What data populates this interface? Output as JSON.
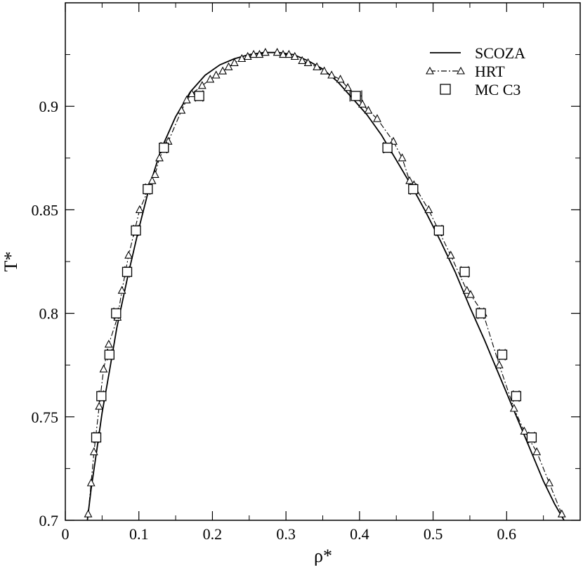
{
  "chart_data": {
    "type": "line",
    "title": "",
    "xlabel": "ρ*",
    "ylabel": "T*",
    "xlim": [
      0,
      0.7
    ],
    "ylim": [
      0.7,
      0.95
    ],
    "xticks": [
      "0",
      "0.1",
      "0.2",
      "0.3",
      "0.4",
      "0.5",
      "0.6"
    ],
    "xtick_values": [
      0,
      0.1,
      0.2,
      0.3,
      0.4,
      0.5,
      0.6
    ],
    "yticks": [
      "0.7",
      "0.75",
      "0.8",
      "0.85",
      "0.9"
    ],
    "ytick_values": [
      0.7,
      0.75,
      0.8,
      0.85,
      0.9
    ],
    "grid": false,
    "legend_position": "top-right",
    "series": [
      {
        "name": "SCOZA",
        "style": "solid",
        "x": [
          0.03,
          0.035,
          0.042,
          0.05,
          0.06,
          0.07,
          0.085,
          0.1,
          0.115,
          0.13,
          0.15,
          0.17,
          0.19,
          0.21,
          0.23,
          0.25,
          0.27,
          0.29,
          0.31,
          0.33,
          0.35,
          0.37,
          0.39,
          0.41,
          0.43,
          0.45,
          0.47,
          0.49,
          0.51,
          0.53,
          0.55,
          0.57,
          0.59,
          0.61,
          0.63,
          0.65,
          0.665,
          0.678
        ],
        "y": [
          0.7,
          0.715,
          0.732,
          0.752,
          0.772,
          0.793,
          0.818,
          0.841,
          0.862,
          0.879,
          0.895,
          0.907,
          0.915,
          0.92,
          0.923,
          0.925,
          0.926,
          0.926,
          0.925,
          0.922,
          0.918,
          0.912,
          0.904,
          0.896,
          0.886,
          0.874,
          0.862,
          0.849,
          0.835,
          0.82,
          0.803,
          0.787,
          0.77,
          0.753,
          0.736,
          0.719,
          0.708,
          0.7
        ]
      },
      {
        "name": "HRT",
        "style": "dash-dot-triangle",
        "x": [
          0.031,
          0.035,
          0.039,
          0.046,
          0.052,
          0.059,
          0.071,
          0.077,
          0.086,
          0.101,
          0.118,
          0.122,
          0.128,
          0.14,
          0.158,
          0.165,
          0.172,
          0.186,
          0.197,
          0.205,
          0.214,
          0.222,
          0.23,
          0.24,
          0.248,
          0.256,
          0.264,
          0.272,
          0.288,
          0.296,
          0.304,
          0.312,
          0.322,
          0.33,
          0.342,
          0.352,
          0.362,
          0.374,
          0.384,
          0.395,
          0.404,
          0.412,
          0.424,
          0.446,
          0.458,
          0.468,
          0.474,
          0.494,
          0.524,
          0.546,
          0.551,
          0.568,
          0.59,
          0.61,
          0.624,
          0.641,
          0.658,
          0.675
        ],
        "y": [
          0.703,
          0.718,
          0.733,
          0.755,
          0.773,
          0.785,
          0.798,
          0.811,
          0.828,
          0.85,
          0.864,
          0.867,
          0.875,
          0.883,
          0.898,
          0.903,
          0.906,
          0.91,
          0.913,
          0.915,
          0.917,
          0.919,
          0.921,
          0.923,
          0.924,
          0.925,
          0.925,
          0.926,
          0.926,
          0.925,
          0.925,
          0.924,
          0.922,
          0.921,
          0.919,
          0.917,
          0.915,
          0.913,
          0.909,
          0.905,
          0.901,
          0.898,
          0.894,
          0.883,
          0.875,
          0.864,
          0.862,
          0.85,
          0.828,
          0.811,
          0.809,
          0.8,
          0.775,
          0.754,
          0.743,
          0.733,
          0.718,
          0.703
        ]
      },
      {
        "name": "MC C3",
        "style": "square-errorbar",
        "x": [
          0.042,
          0.049,
          0.06,
          0.069,
          0.084,
          0.096,
          0.112,
          0.134,
          0.182,
          0.395,
          0.438,
          0.473,
          0.508,
          0.543,
          0.565,
          0.594,
          0.613,
          0.634
        ],
        "y": [
          0.74,
          0.76,
          0.78,
          0.8,
          0.82,
          0.84,
          0.86,
          0.88,
          0.905,
          0.905,
          0.88,
          0.86,
          0.84,
          0.82,
          0.8,
          0.78,
          0.76,
          0.74
        ],
        "xerr": [
          0.003,
          0.003,
          0.003,
          0.003,
          0.003,
          0.003,
          0.003,
          0.004,
          0.005,
          0.008,
          0.005,
          0.004,
          0.004,
          0.005,
          0.004,
          0.004,
          0.004,
          0.004
        ]
      }
    ]
  }
}
